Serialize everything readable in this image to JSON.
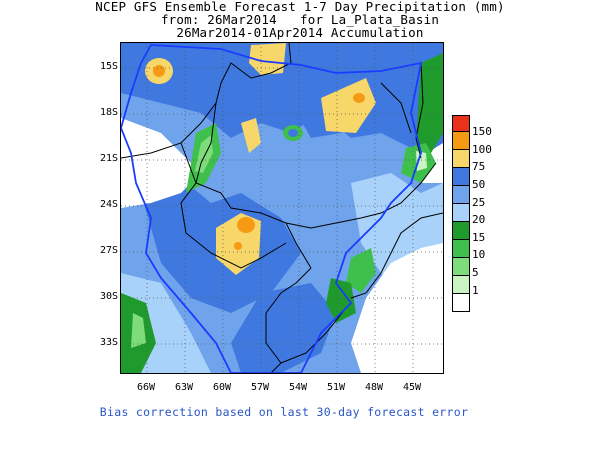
{
  "title": {
    "line1": "NCEP GFS Ensemble Forecast 1-7 Day Precipitation (mm)",
    "line2": "from: 26Mar2014   for La_Plata_Basin",
    "line3": "26Mar2014-01Apr2014 Accumulation"
  },
  "lat_labels": [
    "15S",
    "18S",
    "21S",
    "24S",
    "27S",
    "30S",
    "33S"
  ],
  "lon_labels": [
    "66W",
    "63W",
    "60W",
    "57W",
    "54W",
    "51W",
    "48W",
    "45W"
  ],
  "legend": {
    "labels": [
      "150",
      "100",
      "75",
      "50",
      "25",
      "20",
      "15",
      "10",
      "5",
      "1"
    ],
    "colors": [
      "#e8321c",
      "#f59a12",
      "#f7d76a",
      "#3f79df",
      "#6fa3ec",
      "#a9d2fa",
      "#1f9a2c",
      "#3fc04c",
      "#7fdc7b",
      "#c8f4c2",
      "#ffffff"
    ]
  },
  "footer": "Bias correction based on last 30-day forecast error",
  "colors": {
    "footer_text": "#2a56c6",
    "basin_outline": "#1a3cff",
    "country_border": "#000000"
  }
}
